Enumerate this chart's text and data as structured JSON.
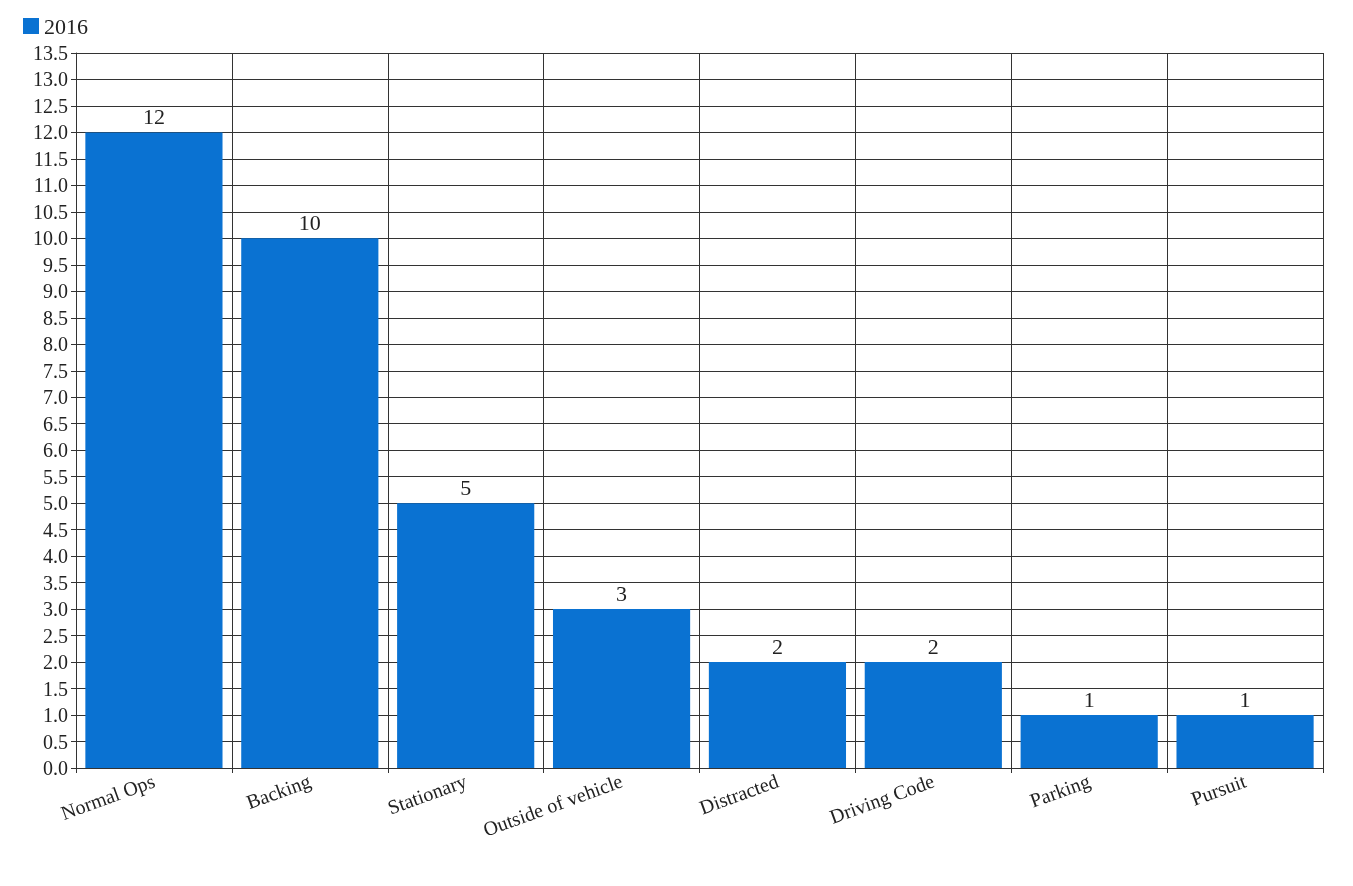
{
  "chart_data": {
    "type": "bar",
    "categories": [
      "Normal Ops",
      "Backing",
      "Stationary",
      "Outside of vehicle",
      "Distracted",
      "Driving Code",
      "Parking",
      "Pursuit"
    ],
    "series": [
      {
        "name": "2016",
        "color": "#0a72d2",
        "values": [
          12,
          10,
          5,
          3,
          2,
          2,
          1,
          1
        ]
      }
    ],
    "ylim": [
      0,
      13.5
    ],
    "yticks": [
      {
        "value": 0,
        "label": "0.0"
      },
      {
        "value": 0.5,
        "label": "0.5"
      },
      {
        "value": 1,
        "label": "1.0"
      },
      {
        "value": 1.5,
        "label": "1.5"
      },
      {
        "value": 2,
        "label": "2.0"
      },
      {
        "value": 2.5,
        "label": "2.5"
      },
      {
        "value": 3,
        "label": "3.0"
      },
      {
        "value": 3.5,
        "label": "3.5"
      },
      {
        "value": 4,
        "label": "4.0"
      },
      {
        "value": 4.5,
        "label": "4.5"
      },
      {
        "value": 5,
        "label": "5.0"
      },
      {
        "value": 5.5,
        "label": "5.5"
      },
      {
        "value": 6,
        "label": "6.0"
      },
      {
        "value": 6.5,
        "label": "6.5"
      },
      {
        "value": 7,
        "label": "7.0"
      },
      {
        "value": 7.5,
        "label": "7.5"
      },
      {
        "value": 8,
        "label": "8.0"
      },
      {
        "value": 8.5,
        "label": "8.5"
      },
      {
        "value": 9,
        "label": "9.0"
      },
      {
        "value": 9.5,
        "label": "9.5"
      },
      {
        "value": 10,
        "label": "10.0"
      },
      {
        "value": 10.5,
        "label": "10.5"
      },
      {
        "value": 11,
        "label": "11.0"
      },
      {
        "value": 11.5,
        "label": "11.5"
      },
      {
        "value": 12,
        "label": "12.0"
      },
      {
        "value": 12.5,
        "label": "12.5"
      },
      {
        "value": 13,
        "label": "13.0"
      },
      {
        "value": 13.5,
        "label": "13.5"
      }
    ],
    "grid": true,
    "legend": "top left",
    "data_labels": true
  }
}
